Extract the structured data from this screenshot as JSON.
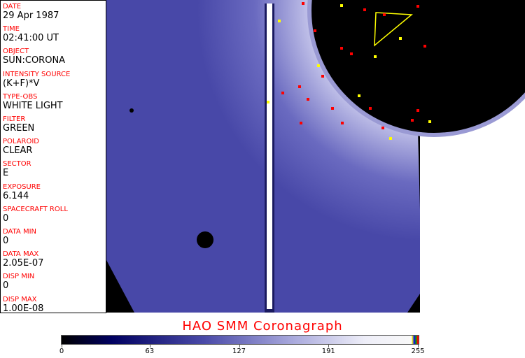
{
  "fields": [
    {
      "label": "DATE",
      "value": "29 Apr 1987"
    },
    {
      "label": "TIME",
      "value": "02:41:00 UT"
    },
    {
      "label": "OBJECT",
      "value": "SUN:CORONA"
    },
    {
      "label": "INTENSITY SOURCE",
      "value": "(K+F)*V"
    },
    {
      "label": "TYPE-OBS",
      "value": "WHITE LIGHT"
    },
    {
      "label": "FILTER",
      "value": "GREEN"
    },
    {
      "label": "POLAROID",
      "value": "CLEAR"
    },
    {
      "label": "SECTOR",
      "value": "E"
    },
    {
      "label": "EXPOSURE",
      "value": "6.144"
    },
    {
      "label": "SPACECRAFT ROLL",
      "value": "0"
    },
    {
      "label": "DATA MIN",
      "value": "0"
    },
    {
      "label": "DATA MAX",
      "value": "2.05E-07"
    },
    {
      "label": "DISP MIN",
      "value": "0"
    },
    {
      "label": "DISP MAX",
      "value": "1.00E-08"
    }
  ],
  "title": "HAO  SMM Coronagraph",
  "colorbar": {
    "ticks": [
      "0",
      "63",
      "127",
      "191",
      "255"
    ],
    "range": [
      0,
      255
    ]
  },
  "colors": {
    "label": "#ff0000",
    "image_blue": "#4a4aa8",
    "occulter": "#000000"
  }
}
